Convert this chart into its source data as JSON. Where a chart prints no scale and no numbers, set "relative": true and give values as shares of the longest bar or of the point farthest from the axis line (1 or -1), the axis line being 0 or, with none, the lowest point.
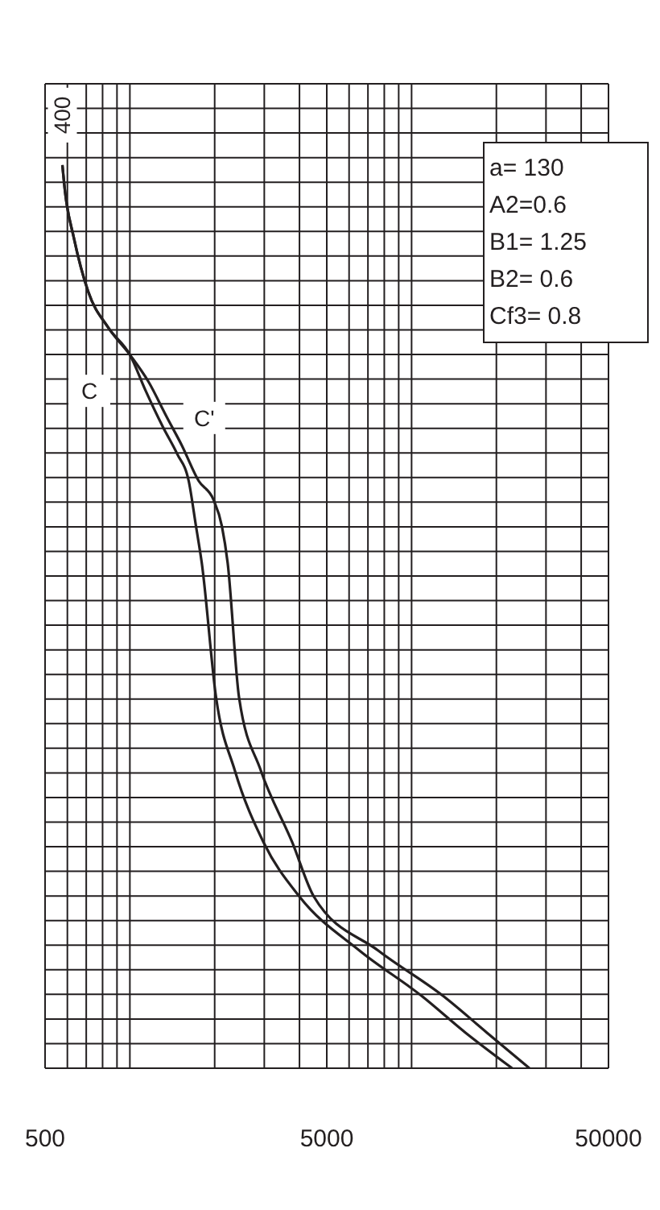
{
  "chart_data": {
    "type": "line",
    "relative": true,
    "log": "x",
    "grid": true,
    "marker": "none",
    "line_style": "solid",
    "legend": false,
    "xlim": [
      500,
      50000
    ],
    "xticks": [
      500,
      {
        "value": 600,
        "label": null
      },
      {
        "value": 700,
        "label": null
      },
      {
        "value": 800,
        "label": null
      },
      {
        "value": 900,
        "label": null
      },
      {
        "value": 1000,
        "label": null
      },
      {
        "value": 2000,
        "label": null
      },
      {
        "value": 3000,
        "label": null
      },
      {
        "value": 4000,
        "label": null
      },
      5000,
      {
        "value": 6000,
        "label": null
      },
      {
        "value": 7000,
        "label": null
      },
      {
        "value": 8000,
        "label": null
      },
      {
        "value": 9000,
        "label": null
      },
      {
        "value": 10000,
        "label": null
      },
      {
        "value": 20000,
        "label": null
      },
      {
        "value": 30000,
        "label": null
      },
      {
        "value": 40000,
        "label": null
      },
      50000
    ],
    "series": [
      {
        "name": "C",
        "color": "#231f20",
        "x": [
          576,
          589,
          632,
          711,
          838,
          1000,
          1138,
          1310,
          1473,
          1618,
          1717,
          1799,
          2024,
          2356,
          2983,
          4000,
          6547,
          10860,
          15450,
          22750
        ],
        "values": [
          1,
          0.97,
          0.92,
          0.86,
          0.82,
          0.79,
          0.75,
          0.71,
          0.68,
          0.65,
          0.6,
          0.56,
          0.41,
          0.33,
          0.25,
          0.19,
          0.13,
          0.08,
          0.04,
          0
        ]
      },
      {
        "name": "C'",
        "color": "#231f20",
        "x": [
          576,
          589,
          632,
          711,
          838,
          1000,
          1165,
          1357,
          1527,
          1757,
          1977,
          2122,
          2223,
          2442,
          2913,
          3771,
          4499,
          7633,
          12940,
          18410,
          26200
        ],
        "values": [
          1,
          0.97,
          0.92,
          0.86,
          0.82,
          0.79,
          0.76,
          0.72,
          0.69,
          0.65,
          0.63,
          0.6,
          0.56,
          0.41,
          0.33,
          0.25,
          0.19,
          0.13,
          0.08,
          0.04,
          0
        ]
      }
    ],
    "annotations": [
      {
        "text": "400",
        "x": 576,
        "y": 1
      },
      "a= 130",
      "A2=0.6",
      "B1= 1.25",
      "B2= 0.6",
      "Cf3= 0.8"
    ]
  }
}
